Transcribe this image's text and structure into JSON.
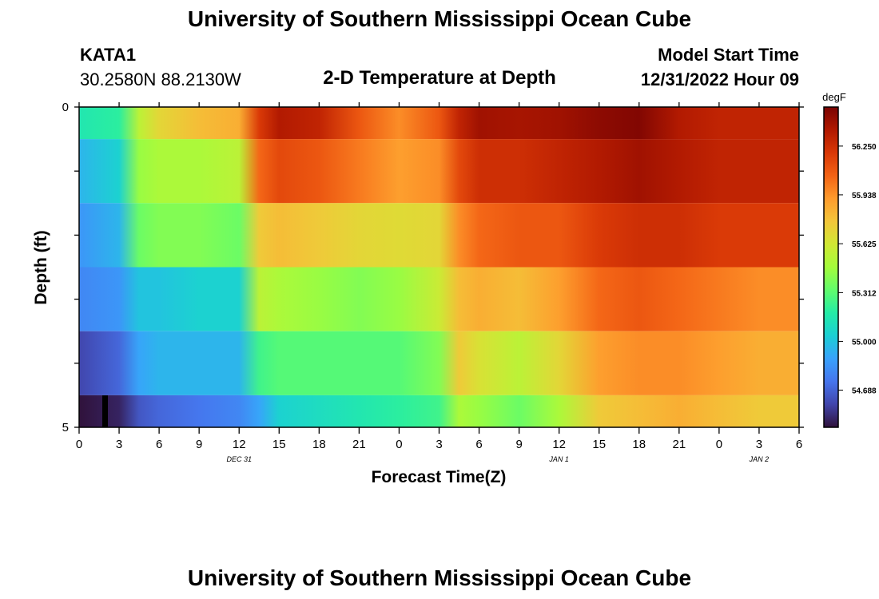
{
  "header": {
    "title": "University of Southern Mississippi Ocean Cube",
    "station_id": "KATA1",
    "station_coords": "30.2580N  88.2130W",
    "chart_title": "2-D Temperature at Depth",
    "model_start_label": "Model Start Time",
    "model_start_value": "12/31/2022 Hour 09"
  },
  "footer": {
    "title": "University of Southern Mississippi Ocean Cube"
  },
  "colors": {
    "colormap": [
      "#30123b",
      "#4145ab",
      "#4675ed",
      "#39a2fc",
      "#1bcfd4",
      "#24eca6",
      "#61fc6c",
      "#a4fc3b",
      "#d1e834",
      "#f3c63a",
      "#fe9b2d",
      "#f36315",
      "#d93806",
      "#b11901",
      "#7a0402"
    ]
  },
  "chart_data": {
    "type": "heatmap",
    "title": "2-D Temperature at Depth",
    "xlabel": "Forecast Time(Z)",
    "ylabel": "Depth (ft)",
    "colorbar_label": "degF",
    "x_tick_labels": [
      "0",
      "3",
      "6",
      "9",
      "12",
      "15",
      "18",
      "21",
      "0",
      "3",
      "6",
      "9",
      "12",
      "15",
      "18",
      "21",
      "0",
      "3",
      "6"
    ],
    "x_range_hours": [
      0,
      54
    ],
    "date_labels": [
      {
        "label": "DEC 31",
        "hour": 12
      },
      {
        "label": "JAN 1",
        "hour": 36
      },
      {
        "label": "JAN 2",
        "hour": 51
      }
    ],
    "y_tick_labels": [
      "0",
      "5"
    ],
    "ylim": [
      0,
      5
    ],
    "y_reversed": true,
    "colorbar_ticks": [
      "56.250",
      "55.938",
      "55.625",
      "55.312",
      "55.000",
      "54.688"
    ],
    "colorbar_tick_values": [
      56.25,
      55.938,
      55.625,
      55.312,
      55.0,
      54.688
    ],
    "color_range": [
      54.45,
      56.5
    ],
    "depth_bands": [
      {
        "depth_top": 0.0,
        "depth_bottom": 0.5
      },
      {
        "depth_top": 0.5,
        "depth_bottom": 1.5
      },
      {
        "depth_top": 1.5,
        "depth_bottom": 2.5
      },
      {
        "depth_top": 2.5,
        "depth_bottom": 3.5
      },
      {
        "depth_top": 3.5,
        "depth_bottom": 4.5
      },
      {
        "depth_top": 4.5,
        "depth_bottom": 5.0
      }
    ],
    "time_hours": [
      0,
      3,
      4.5,
      6,
      9,
      12,
      13.5,
      15,
      18,
      21,
      24,
      27,
      28.5,
      30,
      33,
      36,
      39,
      42,
      45,
      48,
      51,
      54
    ],
    "temperature_degF": [
      [
        55.15,
        55.2,
        55.55,
        55.7,
        55.8,
        55.85,
        56.2,
        56.35,
        56.3,
        56.1,
        55.95,
        56.1,
        56.3,
        56.4,
        56.38,
        56.4,
        56.45,
        56.48,
        56.35,
        56.3,
        56.3,
        56.3
      ],
      [
        54.95,
        55.05,
        55.45,
        55.5,
        55.5,
        55.55,
        56.05,
        56.15,
        56.1,
        56.0,
        55.9,
        55.95,
        56.15,
        56.25,
        56.25,
        56.3,
        56.35,
        56.4,
        56.35,
        56.3,
        56.3,
        56.3
      ],
      [
        54.85,
        54.95,
        55.35,
        55.4,
        55.4,
        55.35,
        55.75,
        55.8,
        55.75,
        55.7,
        55.68,
        55.7,
        55.95,
        56.05,
        56.1,
        56.1,
        56.2,
        56.25,
        56.25,
        56.2,
        56.2,
        56.2
      ],
      [
        54.8,
        54.85,
        55.0,
        55.0,
        55.05,
        55.05,
        55.55,
        55.5,
        55.45,
        55.4,
        55.45,
        55.6,
        55.8,
        55.85,
        55.8,
        55.9,
        56.05,
        56.1,
        56.05,
        56.0,
        55.95,
        55.95
      ],
      [
        54.6,
        54.7,
        54.9,
        54.95,
        54.95,
        54.95,
        55.25,
        55.3,
        55.3,
        55.3,
        55.3,
        55.4,
        55.75,
        55.65,
        55.55,
        55.7,
        55.9,
        55.95,
        55.95,
        55.9,
        55.85,
        55.85
      ],
      [
        54.45,
        54.5,
        54.65,
        54.7,
        54.75,
        54.8,
        54.9,
        55.05,
        55.1,
        55.15,
        55.2,
        55.25,
        55.5,
        55.45,
        55.35,
        55.5,
        55.75,
        55.8,
        55.85,
        55.8,
        55.75,
        55.75
      ]
    ],
    "grid": false,
    "legend": "colorbar-right"
  }
}
